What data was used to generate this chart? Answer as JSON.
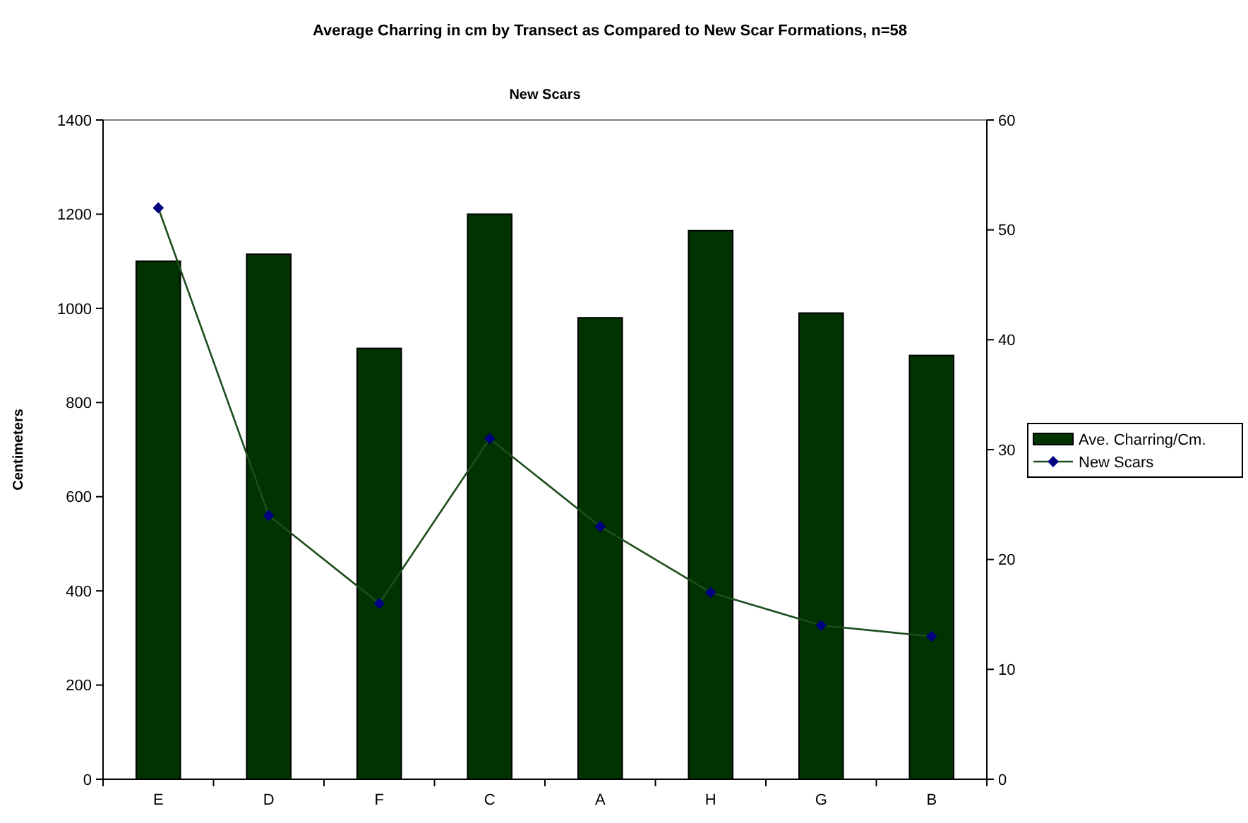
{
  "chart_data": {
    "type": "bar",
    "title": "Average Charring in cm by Transect as Compared to New Scar Formations, n=58",
    "subtitle": "New Scars",
    "ylabel": "Centimeters",
    "categories": [
      "E",
      "D",
      "F",
      "C",
      "A",
      "H",
      "G",
      "B"
    ],
    "series": [
      {
        "name": "Ave. Charring/Cm.",
        "color": "#003300",
        "values": [
          1100,
          1115,
          915,
          1200,
          980,
          1165,
          990,
          900
        ]
      },
      {
        "name": "New Scars",
        "type": "line",
        "axis": "y2",
        "color": "#000080",
        "marker": "diamond",
        "values": [
          52,
          24,
          16,
          31,
          23,
          17,
          14,
          13
        ]
      }
    ],
    "ylim": [
      0,
      1400
    ],
    "yticks": [
      0,
      200,
      400,
      600,
      800,
      1000,
      1200,
      1400
    ],
    "y2lim": [
      0,
      60
    ],
    "y2ticks": [
      0,
      10,
      20,
      30,
      40,
      50,
      60
    ],
    "grid": false,
    "legend": "right"
  }
}
